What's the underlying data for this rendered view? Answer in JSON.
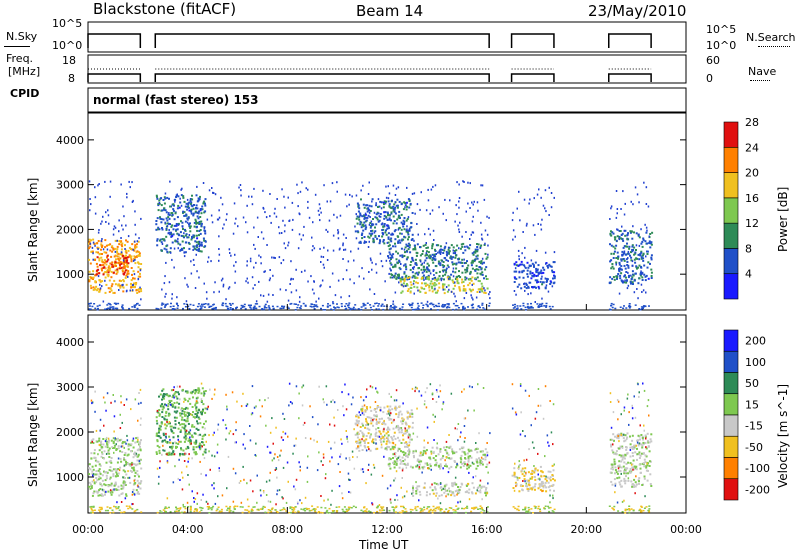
{
  "header": {
    "station": "Blackstone (fitACF)",
    "beam": "Beam 14",
    "date": "23/May/2010"
  },
  "strip_noise": {
    "left_label": "N.Sky",
    "right_label": "N.Search",
    "ticks_left": [
      "10^5",
      "10^0"
    ],
    "ticks_right": [
      "10^5",
      "10^0"
    ]
  },
  "strip_freq": {
    "left_label_1": "Freq.",
    "left_label_2": "[MHz]",
    "right_label": "Nave",
    "ticks_left": [
      "18",
      "8"
    ],
    "ticks_right": [
      "60",
      "0"
    ]
  },
  "cpid": {
    "label": "CPID",
    "value": "normal (fast stereo) 153"
  },
  "colorbar_power": {
    "label": "Power [dB]",
    "ticks": [
      "4",
      "8",
      "12",
      "16",
      "20",
      "24",
      "28"
    ],
    "colors": [
      "#1a1aff",
      "#2050c8",
      "#2e8b57",
      "#7ec850",
      "#f0c020",
      "#ff8000",
      "#e01010"
    ]
  },
  "colorbar_velocity": {
    "label": "Velocity [m s^-1]",
    "ticks": [
      "200",
      "100",
      "50",
      "15",
      "-15",
      "-50",
      "-100",
      "-200"
    ],
    "colors": [
      "#1a1aff",
      "#2050c8",
      "#2e8b57",
      "#7ec850",
      "#c8c8c8",
      "#f0c020",
      "#ff8000",
      "#e01010"
    ]
  },
  "chart_data": {
    "type": "heatmap",
    "title": "Blackstone (fitACF)",
    "xlabel": "Time UT",
    "ylabel": "Slant Range [km]",
    "x_range_hours": [
      0,
      24
    ],
    "y_range_km": [
      200,
      4600
    ],
    "x_ticks": [
      "00:00",
      "04:00",
      "08:00",
      "12:00",
      "16:00",
      "20:00",
      "00:00"
    ],
    "y_ticks": [
      1000,
      2000,
      3000,
      4000
    ],
    "data_gaps_hours": [
      [
        2.1,
        2.7
      ],
      [
        16.1,
        17.0
      ],
      [
        18.7,
        20.9
      ],
      [
        22.6,
        24.0
      ]
    ],
    "panels": [
      {
        "name": "Power [dB]",
        "scale": [
          0,
          32
        ],
        "echo_regions": [
          {
            "t": [
              0.0,
              2.1
            ],
            "r": [
              600,
              1800
            ],
            "value": 22
          },
          {
            "t": [
              0.3,
              1.6
            ],
            "r": [
              1000,
              1450
            ],
            "value": 28
          },
          {
            "t": [
              2.7,
              4.7
            ],
            "r": [
              1500,
              2800
            ],
            "value": 8
          },
          {
            "t": [
              10.7,
              13.0
            ],
            "r": [
              1700,
              2700
            ],
            "value": 8
          },
          {
            "t": [
              12.0,
              16.0
            ],
            "r": [
              900,
              1700
            ],
            "value": 10
          },
          {
            "t": [
              12.5,
              16.0
            ],
            "r": [
              600,
              950
            ],
            "value": 18
          },
          {
            "t": [
              17.0,
              18.7
            ],
            "r": [
              700,
              1300
            ],
            "value": 6
          },
          {
            "t": [
              20.9,
              22.6
            ],
            "r": [
              800,
              2000
            ],
            "value": 8
          }
        ]
      },
      {
        "name": "Velocity [m s^-1]",
        "scale": [
          -200,
          200
        ],
        "echo_regions": [
          {
            "t": [
              0.0,
              2.1
            ],
            "r": [
              600,
              1900
            ],
            "value": 0
          },
          {
            "t": [
              2.7,
              4.7
            ],
            "r": [
              1500,
              3000
            ],
            "value": 40
          },
          {
            "t": [
              10.7,
              13.0
            ],
            "r": [
              1600,
              2600
            ],
            "value": -30
          },
          {
            "t": [
              12.0,
              16.0
            ],
            "r": [
              1200,
              1700
            ],
            "value": 0
          },
          {
            "t": [
              13.0,
              16.0
            ],
            "r": [
              600,
              900
            ],
            "value": -20
          },
          {
            "t": [
              17.0,
              18.7
            ],
            "r": [
              700,
              1300
            ],
            "value": -40
          },
          {
            "t": [
              20.9,
              22.6
            ],
            "r": [
              800,
              2000
            ],
            "value": -10
          }
        ]
      }
    ]
  }
}
